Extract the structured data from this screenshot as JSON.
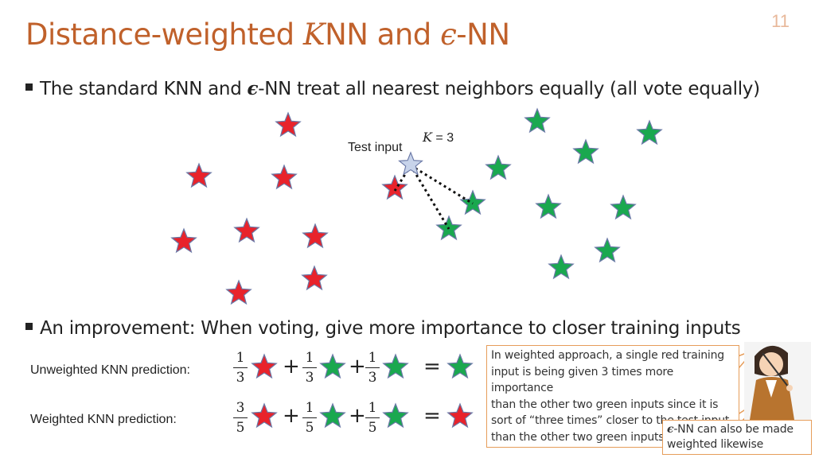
{
  "slide": {
    "title_before": "Distance-weighted ",
    "title_k": "K",
    "title_mid": "NN and ",
    "title_eps": "ϵ",
    "title_after": "-NN",
    "number": "11"
  },
  "bullets": {
    "b1_before": "The standard KNN and ",
    "b1_eps": "ϵ",
    "b1_after": "-NN treat all nearest neighbors equally (all vote equally)",
    "b2": "An improvement: When voting, give more importance to closer training inputs"
  },
  "figure": {
    "k_symbol": "K",
    "k_value": "= 3",
    "test_label": "Test input",
    "colors": {
      "red": "#e8232b",
      "green": "#1aa84f",
      "test": "#c7d3ea"
    }
  },
  "predictions": {
    "unweighted_label": "Unweighted KNN prediction:",
    "weighted_label": "Weighted KNN prediction:",
    "plus": "+",
    "equals": "=",
    "unweighted": {
      "f1": {
        "num": "1",
        "den": "3"
      },
      "f2": {
        "num": "1",
        "den": "3"
      },
      "f3": {
        "num": "1",
        "den": "3"
      }
    },
    "weighted": {
      "f1": {
        "num": "3",
        "den": "5"
      },
      "f2": {
        "num": "1",
        "den": "5"
      },
      "f3": {
        "num": "1",
        "den": "5"
      }
    }
  },
  "callouts": {
    "main": [
      "In weighted approach, a single red training",
      "input is being given 3 times more importance",
      "than the other two green inputs since it is",
      "sort of “three times” closer to the test input",
      "than the other two green inputs"
    ],
    "eps_symbol": "ϵ",
    "eps_line1": "-NN can also be made",
    "eps_line2": "weighted likewise"
  }
}
